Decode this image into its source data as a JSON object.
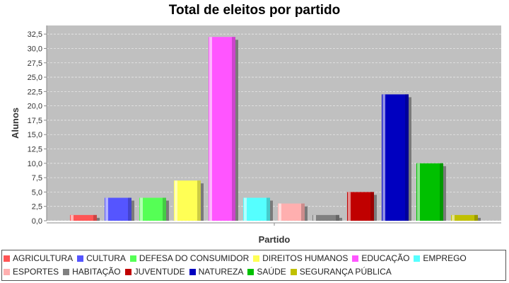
{
  "chart_data": {
    "type": "bar",
    "title": "Total de eleitos por partido",
    "xlabel": "Partido",
    "ylabel": "Alunos",
    "ylim": [
      0,
      34
    ],
    "y_ticks": [
      "0,0",
      "2,5",
      "5,0",
      "7,5",
      "10,0",
      "12,5",
      "15,0",
      "17,5",
      "20,0",
      "22,5",
      "25,0",
      "27,5",
      "30,0",
      "32,5"
    ],
    "y_tick_values": [
      0,
      2.5,
      5,
      7.5,
      10,
      12.5,
      15,
      17.5,
      20,
      22.5,
      25,
      27.5,
      30,
      32.5
    ],
    "grid": true,
    "legend_position": "bottom",
    "series": [
      {
        "name": "AGRICULTURA",
        "value": 1,
        "color": "#ff5555"
      },
      {
        "name": "CULTURA",
        "value": 4,
        "color": "#5555ff"
      },
      {
        "name": "DEFESA DO CONSUMIDOR",
        "value": 4,
        "color": "#55ff55"
      },
      {
        "name": "DIREITOS HUMANOS",
        "value": 7,
        "color": "#ffff55"
      },
      {
        "name": "EDUCAÇÃO",
        "value": 32,
        "color": "#ff55ff"
      },
      {
        "name": "EMPREGO",
        "value": 4,
        "color": "#55ffff"
      },
      {
        "name": "ESPORTES",
        "value": 3,
        "color": "#ffafaf"
      },
      {
        "name": "HABITAÇÃO",
        "value": 1,
        "color": "#808080"
      },
      {
        "name": "JUVENTUDE",
        "value": 5,
        "color": "#c00000"
      },
      {
        "name": "NATUREZA",
        "value": 22,
        "color": "#0000c0"
      },
      {
        "name": "SAÚDE",
        "value": 10,
        "color": "#00c000"
      },
      {
        "name": "SEGURANÇA PÚBLICA",
        "value": 1,
        "color": "#c0c000"
      }
    ]
  }
}
